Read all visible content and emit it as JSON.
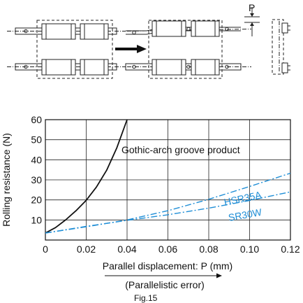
{
  "diagram": {
    "p_label": "P"
  },
  "chart_data": {
    "type": "line",
    "ylabel": "Rolling resistance (N)",
    "xlabel": "Parallel displacement: P (mm)",
    "note": "(Parallelistic error)",
    "figure_caption": "Fig.15",
    "xlim": [
      0,
      0.12
    ],
    "ylim": [
      0,
      60
    ],
    "x_ticks": [
      0,
      0.02,
      0.04,
      0.06,
      0.08,
      0.1,
      0.12
    ],
    "x_tick_labels": [
      "0",
      "0.02",
      "0.04",
      "0.06",
      "0.08",
      "0.10",
      "0.12"
    ],
    "y_ticks": [
      10,
      20,
      30,
      40,
      50,
      60
    ],
    "y_tick_labels": [
      "10",
      "20",
      "30",
      "40",
      "50",
      "60"
    ],
    "grid": true,
    "colors": {
      "gothic": "#111111",
      "hsr": "#1f8ed6",
      "sr": "#1f8ed6",
      "grid": "#222222"
    },
    "series": [
      {
        "name": "Gothic-arch groove product",
        "style": "solid",
        "x": [
          0,
          0.005,
          0.01,
          0.015,
          0.02,
          0.025,
          0.03,
          0.035,
          0.04
        ],
        "y": [
          3.5,
          6.2,
          10.1,
          14.6,
          19.8,
          26.4,
          34.8,
          46.0,
          60.0
        ]
      },
      {
        "name": "HSR35A",
        "style": "dashdot",
        "x": [
          0,
          0.02,
          0.04,
          0.06,
          0.08,
          0.1,
          0.12
        ],
        "y": [
          3.5,
          6.6,
          10.0,
          14.6,
          20.3,
          26.7,
          33.3
        ]
      },
      {
        "name": "SR30W",
        "style": "dashdot",
        "x": [
          0,
          0.02,
          0.04,
          0.06,
          0.08,
          0.1,
          0.12
        ],
        "y": [
          3.5,
          6.8,
          9.8,
          12.6,
          15.9,
          19.7,
          24.0
        ]
      }
    ]
  }
}
